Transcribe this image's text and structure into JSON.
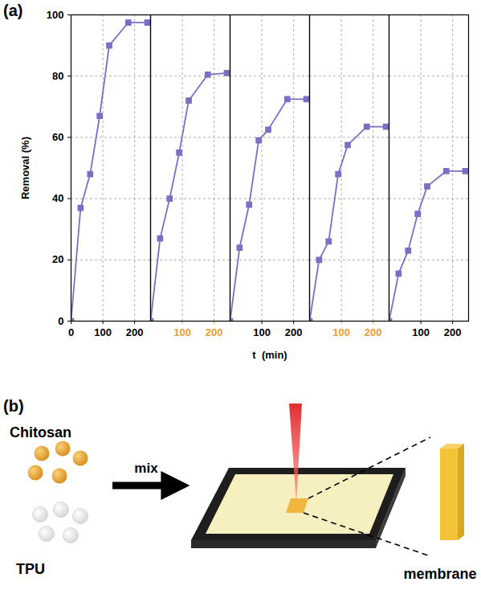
{
  "chart_data": [
    {
      "type": "line",
      "x": [
        0,
        30,
        60,
        90,
        120,
        180,
        240
      ],
      "values": [
        0,
        37,
        48,
        67,
        90,
        97.5,
        97.5
      ],
      "color": "#7b6fc4",
      "marker": "square",
      "xlim": [
        0,
        250
      ],
      "ylim": [
        0,
        100
      ],
      "xticks": [
        0,
        100,
        200
      ],
      "yticks": [
        0,
        20,
        40,
        60,
        80,
        100
      ],
      "grid": true,
      "ylabel": "Removal (%)"
    },
    {
      "type": "line",
      "x": [
        0,
        30,
        60,
        90,
        120,
        180,
        240
      ],
      "values": [
        0,
        27,
        40,
        55,
        72,
        80.5,
        81
      ],
      "color": "#7b6fc4",
      "marker": "square",
      "xlim": [
        0,
        250
      ],
      "ylim": [
        0,
        100
      ],
      "xticks": [
        100,
        200
      ],
      "yticks": [
        0,
        20,
        40,
        60,
        80,
        100
      ],
      "grid": true,
      "tick_labels": "x"
    },
    {
      "type": "line",
      "x": [
        0,
        30,
        60,
        90,
        120,
        180,
        240
      ],
      "values": [
        0,
        24,
        38,
        59,
        62.5,
        72.5,
        72.5
      ],
      "color": "#7b6fc4",
      "marker": "square",
      "xlim": [
        0,
        250
      ],
      "ylim": [
        0,
        100
      ],
      "xticks": [
        100,
        200
      ],
      "yticks": [
        0,
        20,
        40,
        60,
        80,
        100
      ],
      "grid": true,
      "tick_labels": "x",
      "xlabel": "t  (min)"
    },
    {
      "type": "line",
      "x": [
        0,
        30,
        60,
        90,
        120,
        180,
        240
      ],
      "values": [
        0,
        20,
        26,
        48,
        57.5,
        63.5,
        63.5
      ],
      "color": "#7b6fc4",
      "marker": "square",
      "xlim": [
        0,
        250
      ],
      "ylim": [
        0,
        100
      ],
      "xticks": [
        100,
        200
      ],
      "yticks": [
        0,
        20,
        40,
        60,
        80,
        100
      ],
      "grid": true,
      "tick_labels": "x"
    },
    {
      "type": "line",
      "x": [
        0,
        30,
        60,
        90,
        120,
        180,
        240
      ],
      "values": [
        0,
        15.5,
        23,
        35,
        44,
        49,
        49
      ],
      "color": "#7b6fc4",
      "marker": "square",
      "xlim": [
        0,
        250
      ],
      "ylim": [
        0,
        100
      ],
      "xticks": [
        100,
        200
      ],
      "yticks": [
        0,
        20,
        40,
        60,
        80,
        100
      ],
      "grid": true,
      "tick_labels": "x"
    }
  ],
  "figure_labels": [
    "(a)",
    "(b)"
  ],
  "diagram": {
    "inputs": [
      "Chitosan",
      "TPU"
    ],
    "arrow_label": "mix",
    "output": "membrane"
  }
}
